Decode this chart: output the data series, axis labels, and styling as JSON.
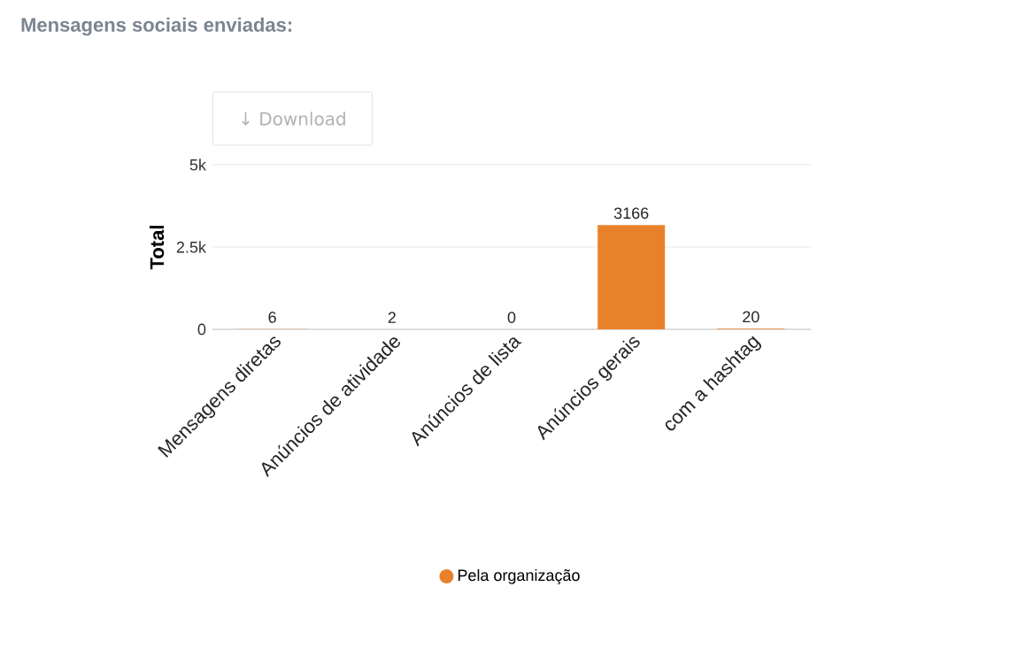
{
  "chart_data": {
    "type": "bar",
    "title": "Mensagens sociais enviadas:",
    "categories": [
      "Mensagens diretas",
      "Anúncios de atividade",
      "Anúncios de lista",
      "Anúncios gerais",
      "com a hashtag"
    ],
    "series": [
      {
        "name": "Pela organização",
        "color": "#e8822a",
        "values": [
          6,
          2,
          0,
          3166,
          20
        ]
      }
    ],
    "ylabel": "Total",
    "ylim": [
      0,
      5000
    ],
    "yticks": [
      0,
      {
        "value": 2500,
        "label": "2.5k"
      },
      {
        "value": 5000,
        "label": "5k"
      }
    ],
    "grid": "y",
    "data_labels": true,
    "legend": "bottom",
    "marker": "circle",
    "annotations": [
      "↓ Download"
    ]
  }
}
